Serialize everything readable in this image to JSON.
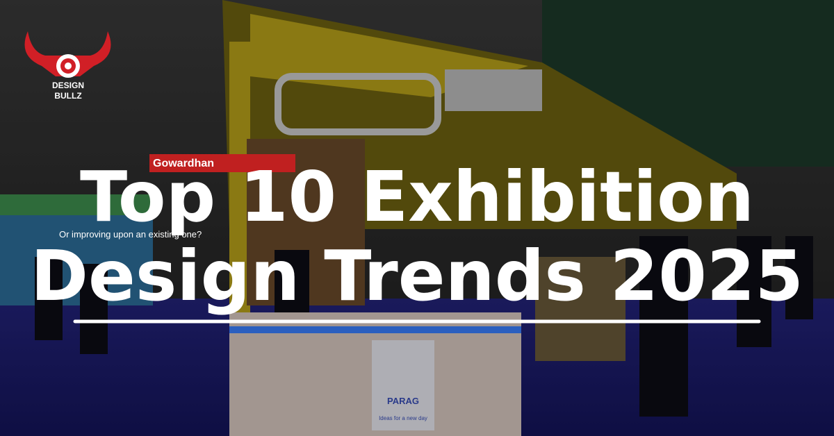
{
  "logo": {
    "line1": "DESIGN",
    "line2": "BULLZ"
  },
  "title": {
    "line1": "Top 10 Exhibition",
    "line2": "Design Trends 2025"
  },
  "scene": {
    "sign_left": "Or improving upon an existing one?",
    "brand_top": "Gowardhan",
    "brand_counter": "PARAG",
    "brand_tagline": "Ideas for a new day"
  }
}
